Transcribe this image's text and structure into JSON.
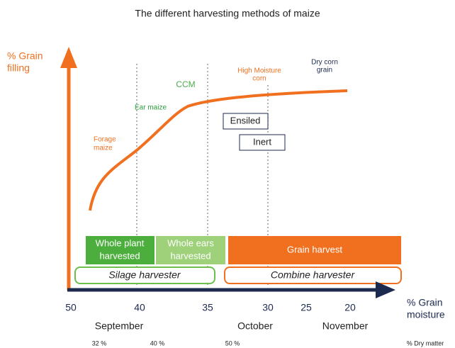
{
  "title": "The different harvesting methods of maize",
  "y_axis_label": [
    "% Grain",
    "filling"
  ],
  "x_axis_label": [
    "% Grain",
    "moisture"
  ],
  "curve_labels": {
    "forage": [
      "Forage",
      "maize"
    ],
    "ear": "Ear maize",
    "ccm": "CCM",
    "high_moisture": [
      "High Moisture",
      "corn"
    ],
    "dry": [
      "Dry corn",
      "grain"
    ]
  },
  "states": [
    "Ensiled",
    "Inert"
  ],
  "harvest_types": [
    [
      "Whole plant",
      "harvested"
    ],
    [
      "Whole ears",
      "harvested"
    ],
    "Grain harvest"
  ],
  "harvesters": [
    "Silage harvester",
    "Combine harvester"
  ],
  "moisture_ticks": [
    "50",
    "40",
    "35",
    "30",
    "25",
    "20"
  ],
  "months": [
    "September",
    "October",
    "November"
  ],
  "dry_matter": [
    "32 %",
    "40 %",
    "50 %"
  ],
  "dry_matter_label": "% Dry matter"
}
